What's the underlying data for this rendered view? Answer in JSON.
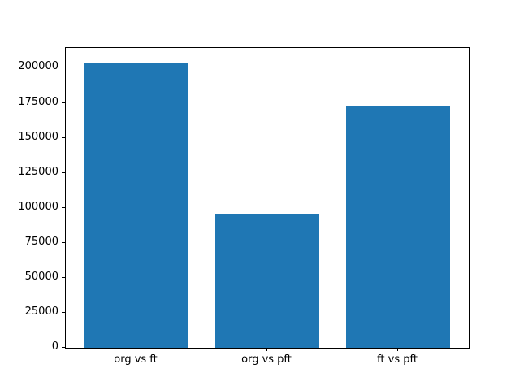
{
  "chart_data": {
    "type": "bar",
    "title": "",
    "xlabel": "",
    "ylabel": "",
    "categories": [
      "org vs ft",
      "org vs pft",
      "ft vs pft"
    ],
    "values": [
      204000,
      95700,
      173000
    ],
    "yticks": [
      0,
      25000,
      50000,
      75000,
      100000,
      125000,
      150000,
      175000,
      200000
    ],
    "ylim": [
      0,
      214200
    ],
    "bar_color": "#1f77b4",
    "spine_color": "#000000",
    "tick_label_color": "#000000",
    "background_color": "#ffffff",
    "grid": false,
    "legend": null,
    "bar_width_fraction": 0.8
  }
}
